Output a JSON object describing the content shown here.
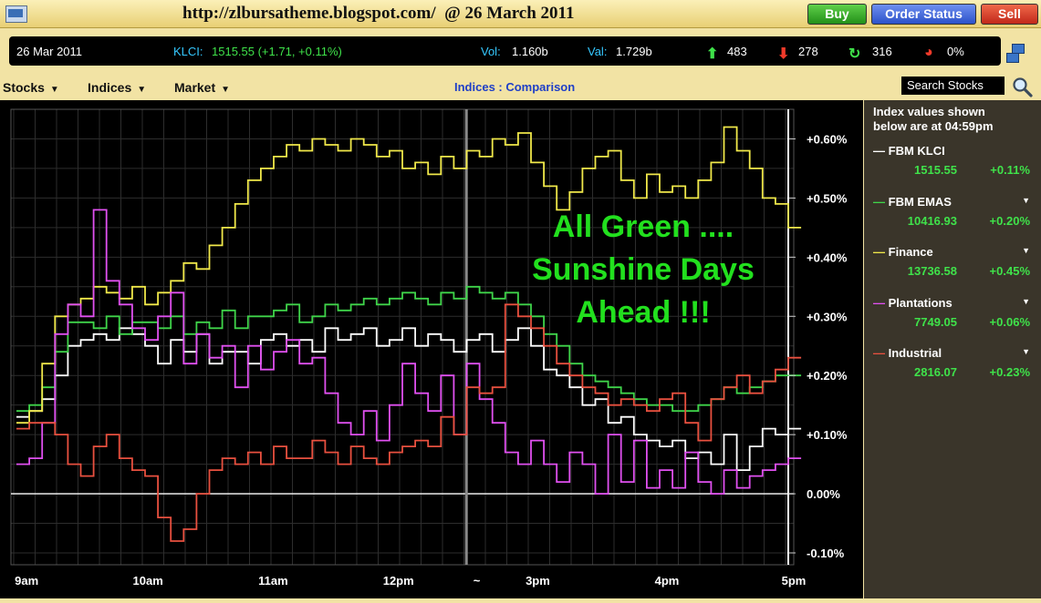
{
  "window": {
    "title": "http://zlbursatheme.blogspot.com/  @ 26 March 2011",
    "buttons": {
      "buy": "Buy",
      "order_status": "Order Status",
      "sell": "Sell"
    }
  },
  "ticker": {
    "date": "26 Mar 2011",
    "klci_label": "KLCI:",
    "klci_value": "1515.55 (+1.71, +0.11%)",
    "vol_label": "Vol:",
    "vol_value": "1.160b",
    "val_label": "Val:",
    "val_value": "1.729b",
    "up": "483",
    "down": "278",
    "unchanged": "316",
    "pct": "0%"
  },
  "menu": {
    "stocks": "Stocks",
    "indices": "Indices",
    "market": "Market",
    "center_title": "Indices : Comparison",
    "search_placeholder": "Search Stocks"
  },
  "side": {
    "header_line1": "Index values shown",
    "header_line2": "below are at 04:59pm",
    "indices": [
      {
        "name": "FBM KLCI",
        "value": "1515.55",
        "change": "+0.11%",
        "color": "#ffffff"
      },
      {
        "name": "FBM EMAS",
        "value": "10416.93",
        "change": "+0.20%",
        "color": "#3fd44a"
      },
      {
        "name": "Finance",
        "value": "13736.58",
        "change": "+0.45%",
        "color": "#f0e84a"
      },
      {
        "name": "Plantations",
        "value": "7749.05",
        "change": "+0.06%",
        "color": "#e050f0"
      },
      {
        "name": "Industrial",
        "value": "2816.07",
        "change": "+0.23%",
        "color": "#e8503f"
      }
    ]
  },
  "annotation": [
    "All Green ....",
    "Sunshine Days",
    "Ahead  !!!"
  ],
  "chart_data": {
    "type": "line",
    "x_ticks": [
      "9am",
      "10am",
      "11am",
      "12pm",
      "~",
      "3pm",
      "4pm",
      "5pm"
    ],
    "y_ticks": [
      "+0.60%",
      "+0.50%",
      "+0.40%",
      "+0.30%",
      "+0.20%",
      "+0.10%",
      "0.00%",
      "-0.10%"
    ],
    "ylim": [
      -0.12,
      0.65
    ],
    "x_index_range": [
      0,
      60
    ],
    "series": [
      {
        "name": "FBM KLCI",
        "color": "#ffffff",
        "values": [
          0.13,
          0.14,
          0.16,
          0.2,
          0.25,
          0.26,
          0.27,
          0.26,
          0.28,
          0.27,
          0.25,
          0.22,
          0.26,
          0.24,
          0.27,
          0.22,
          0.24,
          0.24,
          0.22,
          0.26,
          0.27,
          0.25,
          0.26,
          0.24,
          0.28,
          0.26,
          0.27,
          0.28,
          0.25,
          0.26,
          0.28,
          0.25,
          0.27,
          0.26,
          0.24,
          0.26,
          0.27,
          0.24,
          0.26,
          0.28,
          0.25,
          0.21,
          0.2,
          0.18,
          0.15,
          0.16,
          0.12,
          0.13,
          0.1,
          0.09,
          0.08,
          0.09,
          0.06,
          0.07,
          0.05,
          0.1,
          0.04,
          0.08,
          0.11,
          0.1,
          0.11,
          0.11
        ]
      },
      {
        "name": "FBM EMAS",
        "color": "#3fd44a",
        "values": [
          0.14,
          0.15,
          0.18,
          0.24,
          0.29,
          0.29,
          0.28,
          0.3,
          0.27,
          0.29,
          0.29,
          0.28,
          0.3,
          0.27,
          0.29,
          0.28,
          0.31,
          0.28,
          0.3,
          0.3,
          0.31,
          0.32,
          0.29,
          0.3,
          0.32,
          0.31,
          0.32,
          0.33,
          0.32,
          0.33,
          0.34,
          0.33,
          0.32,
          0.34,
          0.33,
          0.35,
          0.34,
          0.33,
          0.34,
          0.32,
          0.3,
          0.27,
          0.25,
          0.22,
          0.2,
          0.19,
          0.18,
          0.17,
          0.16,
          0.15,
          0.15,
          0.14,
          0.14,
          0.15,
          0.16,
          0.18,
          0.17,
          0.18,
          0.19,
          0.2,
          0.2,
          0.2
        ]
      },
      {
        "name": "Finance",
        "color": "#f0e84a",
        "values": [
          0.12,
          0.14,
          0.22,
          0.3,
          0.32,
          0.33,
          0.35,
          0.34,
          0.33,
          0.35,
          0.32,
          0.34,
          0.36,
          0.39,
          0.38,
          0.42,
          0.45,
          0.49,
          0.53,
          0.55,
          0.57,
          0.59,
          0.58,
          0.6,
          0.59,
          0.58,
          0.6,
          0.59,
          0.57,
          0.58,
          0.55,
          0.56,
          0.54,
          0.57,
          0.55,
          0.58,
          0.57,
          0.6,
          0.59,
          0.61,
          0.56,
          0.52,
          0.48,
          0.51,
          0.55,
          0.57,
          0.58,
          0.53,
          0.5,
          0.54,
          0.51,
          0.52,
          0.5,
          0.53,
          0.56,
          0.62,
          0.58,
          0.55,
          0.5,
          0.49,
          0.45,
          0.45
        ]
      },
      {
        "name": "Plantations",
        "color": "#e050f0",
        "values": [
          0.05,
          0.06,
          0.12,
          0.27,
          0.32,
          0.3,
          0.48,
          0.36,
          0.32,
          0.28,
          0.26,
          0.3,
          0.34,
          0.22,
          0.27,
          0.23,
          0.25,
          0.18,
          0.25,
          0.21,
          0.24,
          0.26,
          0.22,
          0.23,
          0.17,
          0.12,
          0.1,
          0.14,
          0.09,
          0.15,
          0.22,
          0.17,
          0.14,
          0.2,
          0.1,
          0.22,
          0.16,
          0.12,
          0.07,
          0.05,
          0.09,
          0.05,
          0.02,
          0.07,
          0.05,
          0.0,
          0.1,
          0.02,
          0.09,
          0.01,
          0.04,
          0.01,
          0.07,
          0.02,
          0.0,
          0.04,
          0.01,
          0.03,
          0.04,
          0.05,
          0.06,
          0.06
        ]
      },
      {
        "name": "Industrial",
        "color": "#e8503f",
        "values": [
          0.11,
          0.12,
          0.12,
          0.1,
          0.05,
          0.03,
          0.08,
          0.1,
          0.06,
          0.04,
          0.03,
          -0.04,
          -0.08,
          -0.06,
          0.0,
          0.04,
          0.06,
          0.05,
          0.07,
          0.05,
          0.08,
          0.06,
          0.06,
          0.09,
          0.07,
          0.05,
          0.08,
          0.06,
          0.05,
          0.07,
          0.08,
          0.09,
          0.08,
          0.13,
          0.1,
          0.18,
          0.17,
          0.18,
          0.32,
          0.3,
          0.28,
          0.25,
          0.22,
          0.2,
          0.18,
          0.17,
          0.15,
          0.16,
          0.15,
          0.14,
          0.16,
          0.17,
          0.12,
          0.09,
          0.16,
          0.18,
          0.2,
          0.17,
          0.19,
          0.21,
          0.23,
          0.23
        ]
      }
    ]
  }
}
